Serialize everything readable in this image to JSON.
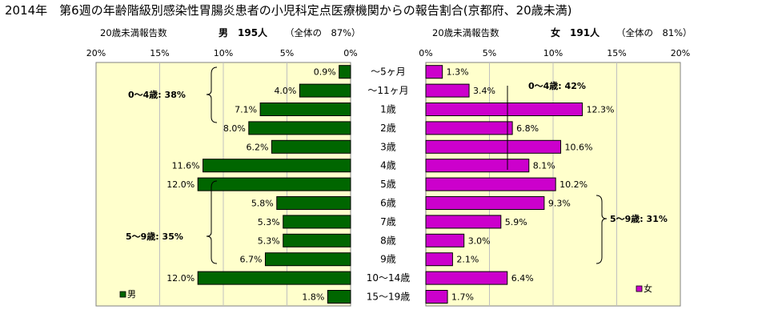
{
  "title": "2014年　第6週の年齢階級別感染性胃腸炎患者の小児科定点医療機関からの報告割合(京都府、20歳未満)",
  "chart_data": [
    {
      "type": "bar",
      "orientation": "horizontal",
      "direction": "right-to-left",
      "header_left": "20歳未満報告数",
      "header_main": "男　195人",
      "header_sub": "（全体の　87%）",
      "xlim": [
        0,
        20
      ],
      "ticks": [
        "20%",
        "15%",
        "10%",
        "5%",
        "0%"
      ],
      "legend": "男",
      "legend_position": "bottom-left",
      "color": "#006600",
      "bracket_notes": [
        "0～4歳: 38%",
        "5～9歳: 35%"
      ],
      "series": [
        {
          "name": "男",
          "values": [
            0.9,
            4.0,
            7.1,
            8.0,
            6.2,
            11.6,
            12.0,
            5.8,
            5.3,
            5.3,
            6.7,
            12.0,
            1.8
          ]
        }
      ],
      "value_labels": [
        "0.9%",
        "4.0%",
        "7.1%",
        "8.0%",
        "6.2%",
        "11.6%",
        "12.0%",
        "5.8%",
        "5.3%",
        "5.3%",
        "6.7%",
        "12.0%",
        "1.8%"
      ]
    },
    {
      "type": "bar",
      "orientation": "horizontal",
      "direction": "left-to-right",
      "header_left": "20歳未満報告数",
      "header_main": "女　191人",
      "header_sub": "（全体の　81%）",
      "xlim": [
        0,
        20
      ],
      "ticks": [
        "0%",
        "5%",
        "10%",
        "15%",
        "20%"
      ],
      "legend": "女",
      "legend_position": "bottom-right",
      "color": "#cc00cc",
      "bracket_notes": [
        "0～4歳: 42%",
        "5～9歳: 31%"
      ],
      "series": [
        {
          "name": "女",
          "values": [
            1.3,
            3.4,
            12.3,
            6.8,
            10.6,
            8.1,
            10.2,
            9.3,
            5.9,
            3.0,
            2.1,
            6.4,
            1.7
          ]
        }
      ],
      "value_labels": [
        "1.3%",
        "3.4%",
        "12.3%",
        "6.8%",
        "10.6%",
        "8.1%",
        "10.2%",
        "9.3%",
        "5.9%",
        "3.0%",
        "2.1%",
        "6.4%",
        "1.7%"
      ]
    }
  ],
  "categories": [
    "～5ヶ月",
    "～11ヶ月",
    "1歳",
    "2歳",
    "3歳",
    "4歳",
    "5歳",
    "6歳",
    "7歳",
    "8歳",
    "9歳",
    "10～14歳",
    "15～19歳"
  ]
}
